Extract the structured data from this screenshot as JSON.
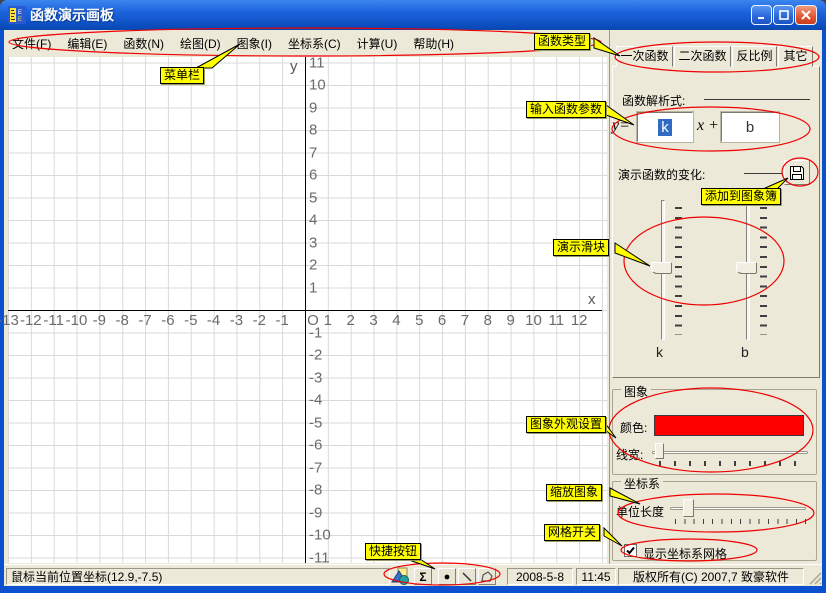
{
  "window": {
    "title": "函数演示画板"
  },
  "menu": {
    "items": [
      "文件(F)",
      "编辑(E)",
      "函数(N)",
      "绘图(D)",
      "图象(I)",
      "坐标系(C)",
      "计算(U)",
      "帮助(H)"
    ]
  },
  "tabs": {
    "items": [
      "一次函数",
      "二次函数",
      "反比例",
      "其它"
    ],
    "active": "一次函数"
  },
  "function_panel": {
    "expression_label": "函数解析式:",
    "formula": {
      "lhs": "y=",
      "k_value": "k",
      "operator": "x +",
      "b_value": "b"
    },
    "demo_label": "演示函数的变化:",
    "slider_k_label": "k",
    "slider_b_label": "b"
  },
  "image_panel": {
    "group_label": "图象",
    "color_label": "颜色:",
    "color_value": "#FF0000",
    "linewidth_label": "线宽:"
  },
  "coord_panel": {
    "group_label": "坐标系",
    "unit_label": "单位长度",
    "grid_checkbox_label": "显示坐标系网格",
    "grid_checked": true
  },
  "graph": {
    "x_axis_letter": "x",
    "y_axis_letter": "y",
    "x_tick_labels": [
      "-13",
      "-12",
      "-11",
      "-10",
      "-9",
      "-8",
      "-7",
      "-6",
      "-5",
      "-4",
      "-3",
      "-2",
      "-1",
      "O",
      "1",
      "2",
      "3",
      "4",
      "5",
      "6",
      "7",
      "8",
      "9",
      "10",
      "11",
      "12"
    ],
    "y_tick_labels": [
      "11",
      "10",
      "9",
      "8",
      "7",
      "6",
      "5",
      "4",
      "3",
      "2",
      "1",
      "-1",
      "-2",
      "-3",
      "-4",
      "-5",
      "-6",
      "-7",
      "-8",
      "-9",
      "-10",
      "-11"
    ],
    "x_range": [
      -13,
      12
    ],
    "y_range": [
      -11,
      11
    ],
    "grid": true
  },
  "annotations": [
    {
      "text": "菜单栏"
    },
    {
      "text": "函数类型"
    },
    {
      "text": "输入函数参数"
    },
    {
      "text": "添加到图象簿"
    },
    {
      "text": "演示滑块"
    },
    {
      "text": "图象外观设置"
    },
    {
      "text": "缩放图象"
    },
    {
      "text": "网格开关"
    },
    {
      "text": "快捷按钮"
    }
  ],
  "status_bar": {
    "mouse_position": "鼠标当前位置坐标(12.9,-7.5)",
    "sigma_glyph": "Σ",
    "date": "2008-5-8",
    "time": "11:45",
    "copyright": "版权所有(C) 2007,7 致豪软件"
  },
  "colors": {
    "annotation_red": "#FF0000",
    "callout_yellow": "#FFFF00",
    "selection_blue": "#316AC5"
  }
}
